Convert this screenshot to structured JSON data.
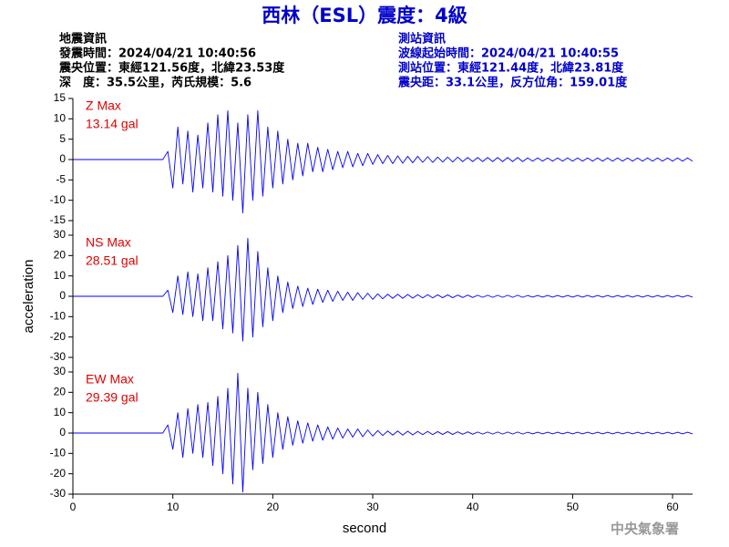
{
  "title": "西林（ESL）震度：4級",
  "event_info": [
    "地震資訊",
    "發震時間：2024/04/21 10:40:56",
    "震央位置：東經121.56度，北緯23.53度",
    "深　度：35.5公里，芮氏規模：5.6"
  ],
  "station_info": [
    "測站資訊",
    "波線起始時間：2024/04/21 10:40:55",
    "測站位置：東經121.44度，北緯23.81度",
    "震央距：33.1公里，反方位角：159.01度"
  ],
  "footer": "中央氣象署",
  "chart_data": [
    {
      "type": "line",
      "color": "#0000ff",
      "annotations": [
        "Z Max",
        "13.14 gal"
      ],
      "xlim": [
        0,
        62
      ],
      "ylim": [
        -15,
        15
      ],
      "yticks": [
        -15,
        -10,
        -5,
        0,
        5,
        10,
        15
      ],
      "x": [
        0,
        0.5,
        1,
        1.5,
        2,
        2.5,
        3,
        3.5,
        4,
        4.5,
        5,
        5.5,
        6,
        6.5,
        7,
        7.5,
        8,
        8.5,
        9,
        9.5,
        10,
        10.5,
        11,
        11.5,
        12,
        12.5,
        13,
        13.5,
        14,
        14.5,
        15,
        15.5,
        16,
        16.5,
        17,
        17.5,
        18,
        18.5,
        19,
        19.5,
        20,
        20.5,
        21,
        21.5,
        22,
        22.5,
        23,
        23.5,
        24,
        24.5,
        25,
        25.5,
        26,
        26.5,
        27,
        27.5,
        28,
        28.5,
        29,
        29.5,
        30,
        30.5,
        31,
        31.5,
        32,
        32.5,
        33,
        33.5,
        34,
        34.5,
        35,
        35.5,
        36,
        36.5,
        37,
        37.5,
        38,
        38.5,
        39,
        39.5,
        40,
        40.5,
        41,
        41.5,
        42,
        42.5,
        43,
        43.5,
        44,
        44.5,
        45,
        45.5,
        46,
        46.5,
        47,
        47.5,
        48,
        48.5,
        49,
        49.5,
        50,
        50.5,
        51,
        51.5,
        52,
        52.5,
        53,
        53.5,
        54,
        54.5,
        55,
        55.5,
        56,
        56.5,
        57,
        57.5,
        58,
        58.5,
        59,
        59.5,
        60,
        60.5,
        61,
        61.5,
        62
      ],
      "values": [
        0,
        0,
        0,
        0,
        0,
        0,
        0,
        0,
        0,
        0,
        0,
        0,
        0,
        0,
        0,
        0,
        0,
        0,
        0,
        2,
        -7,
        8,
        -6,
        7,
        -8,
        6,
        -7,
        9,
        -8,
        11,
        -9,
        12,
        -10,
        9,
        -13.1,
        11,
        -10,
        12,
        -9,
        8,
        -7,
        7,
        -6,
        5,
        -5,
        4,
        -4,
        4,
        -3,
        3,
        -3,
        2.5,
        -2.5,
        2,
        -2,
        2,
        -1.8,
        1.5,
        -1.5,
        1.5,
        -1.2,
        1.2,
        -1,
        1,
        -1,
        0.9,
        -0.9,
        0.8,
        -0.8,
        0.8,
        -0.7,
        0.7,
        -0.7,
        0.6,
        -0.6,
        0.6,
        -0.6,
        0.6,
        -0.5,
        0.5,
        -0.5,
        0.5,
        -0.5,
        0.5,
        -0.5,
        0.5,
        -0.5,
        0.5,
        -0.5,
        0.5,
        -0.5,
        0.4,
        -0.4,
        0.4,
        -0.4,
        0.4,
        -0.4,
        0.4,
        -0.4,
        0.4,
        -0.4,
        0.4,
        -0.4,
        0.4,
        -0.4,
        0.4,
        -0.4,
        0.4,
        -0.4,
        0.4,
        -0.4,
        0.4,
        -0.4,
        0.4,
        -0.4,
        0.4,
        -0.4,
        0.4,
        -0.4,
        0.4,
        -0.4,
        0.4,
        -0.4,
        0.4,
        -0.4
      ]
    },
    {
      "type": "line",
      "color": "#0000ff",
      "annotations": [
        "NS Max",
        "28.51 gal"
      ],
      "ylabel": "acceleration",
      "xlim": [
        0,
        62
      ],
      "ylim": [
        -30,
        30
      ],
      "yticks": [
        -30,
        -20,
        -10,
        0,
        10,
        20,
        30
      ],
      "x": [
        0,
        0.5,
        1,
        1.5,
        2,
        2.5,
        3,
        3.5,
        4,
        4.5,
        5,
        5.5,
        6,
        6.5,
        7,
        7.5,
        8,
        8.5,
        9,
        9.5,
        10,
        10.5,
        11,
        11.5,
        12,
        12.5,
        13,
        13.5,
        14,
        14.5,
        15,
        15.5,
        16,
        16.5,
        17,
        17.5,
        18,
        18.5,
        19,
        19.5,
        20,
        20.5,
        21,
        21.5,
        22,
        22.5,
        23,
        23.5,
        24,
        24.5,
        25,
        25.5,
        26,
        26.5,
        27,
        27.5,
        28,
        28.5,
        29,
        29.5,
        30,
        30.5,
        31,
        31.5,
        32,
        32.5,
        33,
        33.5,
        34,
        34.5,
        35,
        35.5,
        36,
        36.5,
        37,
        37.5,
        38,
        38.5,
        39,
        39.5,
        40,
        40.5,
        41,
        41.5,
        42,
        42.5,
        43,
        43.5,
        44,
        44.5,
        45,
        45.5,
        46,
        46.5,
        47,
        47.5,
        48,
        48.5,
        49,
        49.5,
        50,
        50.5,
        51,
        51.5,
        52,
        52.5,
        53,
        53.5,
        54,
        54.5,
        55,
        55.5,
        56,
        56.5,
        57,
        57.5,
        58,
        58.5,
        59,
        59.5,
        60,
        60.5,
        61,
        61.5,
        62
      ],
      "values": [
        0,
        0,
        0,
        0,
        0,
        0,
        0,
        0,
        0,
        0,
        0,
        0,
        0,
        0,
        0,
        0,
        0,
        0,
        0,
        3,
        -8,
        10,
        -9,
        12,
        -10,
        11,
        -12,
        14,
        -12,
        17,
        -16,
        20,
        -18,
        25,
        -22,
        28.5,
        -20,
        22,
        -15,
        14,
        -12,
        10,
        -8,
        7,
        -6,
        5,
        -5,
        4,
        -4,
        3.5,
        -3,
        3,
        -2.5,
        2.5,
        -2,
        2,
        -2,
        1.8,
        -1.5,
        1.5,
        -1.5,
        1.2,
        -1.2,
        1,
        -1,
        1,
        -1,
        0.9,
        -0.9,
        0.8,
        -0.8,
        0.8,
        -0.8,
        0.7,
        -0.7,
        0.7,
        -0.7,
        0.6,
        -0.6,
        0.6,
        -0.6,
        0.5,
        -0.5,
        0.5,
        -0.5,
        0.5,
        -0.5,
        0.5,
        -0.5,
        0.5,
        -0.5,
        0.4,
        -0.4,
        0.4,
        -0.4,
        0.4,
        -0.4,
        0.4,
        -0.4,
        0.4,
        -0.4,
        0.4,
        -0.4,
        0.4,
        -0.4,
        0.4,
        -0.4,
        0.4,
        -0.4,
        0.4,
        -0.4,
        0.4,
        -0.4,
        0.4,
        -0.4,
        0.4,
        -0.4,
        0.4,
        -0.4,
        0.4,
        -0.4,
        0.4,
        -0.4,
        0.4,
        -0.4
      ]
    },
    {
      "type": "line",
      "color": "#0000ff",
      "annotations": [
        "EW Max",
        "29.39 gal"
      ],
      "xlabel": "second",
      "xlim": [
        0,
        62
      ],
      "ylim": [
        -30,
        30
      ],
      "yticks": [
        -30,
        -20,
        -10,
        0,
        10,
        20,
        30
      ],
      "xticks": [
        0,
        10,
        20,
        30,
        40,
        50,
        60
      ],
      "x": [
        0,
        0.5,
        1,
        1.5,
        2,
        2.5,
        3,
        3.5,
        4,
        4.5,
        5,
        5.5,
        6,
        6.5,
        7,
        7.5,
        8,
        8.5,
        9,
        9.5,
        10,
        10.5,
        11,
        11.5,
        12,
        12.5,
        13,
        13.5,
        14,
        14.5,
        15,
        15.5,
        16,
        16.5,
        17,
        17.5,
        18,
        18.5,
        19,
        19.5,
        20,
        20.5,
        21,
        21.5,
        22,
        22.5,
        23,
        23.5,
        24,
        24.5,
        25,
        25.5,
        26,
        26.5,
        27,
        27.5,
        28,
        28.5,
        29,
        29.5,
        30,
        30.5,
        31,
        31.5,
        32,
        32.5,
        33,
        33.5,
        34,
        34.5,
        35,
        35.5,
        36,
        36.5,
        37,
        37.5,
        38,
        38.5,
        39,
        39.5,
        40,
        40.5,
        41,
        41.5,
        42,
        42.5,
        43,
        43.5,
        44,
        44.5,
        45,
        45.5,
        46,
        46.5,
        47,
        47.5,
        48,
        48.5,
        49,
        49.5,
        50,
        50.5,
        51,
        51.5,
        52,
        52.5,
        53,
        53.5,
        54,
        54.5,
        55,
        55.5,
        56,
        56.5,
        57,
        57.5,
        58,
        58.5,
        59,
        59.5,
        60,
        60.5,
        61,
        61.5,
        62
      ],
      "values": [
        0,
        0,
        0,
        0,
        0,
        0,
        0,
        0,
        0,
        0,
        0,
        0,
        0,
        0,
        0,
        0,
        0,
        0,
        0,
        4,
        -8,
        10,
        -12,
        12,
        -10,
        14,
        -12,
        15,
        -16,
        18,
        -20,
        22,
        -25,
        29.39,
        -29,
        22,
        -18,
        20,
        -15,
        14,
        -12,
        10,
        -8,
        8,
        -6,
        6,
        -5,
        5,
        -4,
        4,
        -3.5,
        3,
        -3,
        2.5,
        -2.5,
        2,
        -2,
        2,
        -1.8,
        1.5,
        -1.5,
        1.2,
        -1.2,
        1,
        -1,
        1,
        -1,
        0.9,
        -0.9,
        0.8,
        -0.8,
        0.8,
        -0.8,
        0.7,
        -0.7,
        0.7,
        -0.7,
        0.6,
        -0.6,
        0.6,
        -0.6,
        0.5,
        -0.5,
        0.5,
        -0.5,
        0.5,
        -0.5,
        0.5,
        -0.5,
        0.5,
        -0.5,
        0.4,
        -0.4,
        0.4,
        -0.4,
        0.4,
        -0.4,
        0.4,
        -0.4,
        0.4,
        -0.4,
        0.4,
        -0.4,
        0.4,
        -0.4,
        0.4,
        -0.4,
        0.4,
        -0.4,
        0.4,
        -0.4,
        0.4,
        -0.4,
        0.4,
        -0.4,
        0.4,
        -0.4,
        0.4,
        -0.4,
        0.4,
        -0.4,
        0.4,
        -0.4,
        0.4,
        -0.4
      ]
    }
  ]
}
